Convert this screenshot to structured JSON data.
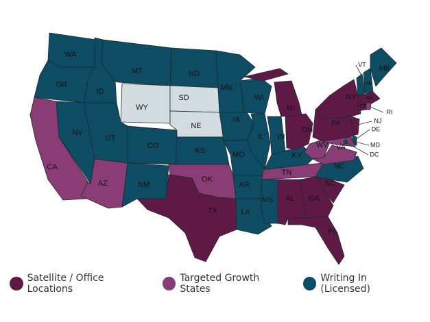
{
  "colors": {
    "satellite": "#5e1a45",
    "growth": "#8a3c75",
    "licensed": "#0d4c62",
    "none": "#d3dcdf"
  },
  "legend": [
    {
      "key": "satellite",
      "label": "Satellite / Office Locations"
    },
    {
      "key": "growth",
      "label": "Targeted Growth States"
    },
    {
      "key": "licensed",
      "label": "Writing In (Licensed)"
    }
  ],
  "states": [
    {
      "abbr": "WA",
      "status": "licensed"
    },
    {
      "abbr": "OR",
      "status": "licensed"
    },
    {
      "abbr": "CA",
      "status": "growth"
    },
    {
      "abbr": "ID",
      "status": "licensed"
    },
    {
      "abbr": "NV",
      "status": "licensed"
    },
    {
      "abbr": "MT",
      "status": "licensed"
    },
    {
      "abbr": "WY",
      "status": "none"
    },
    {
      "abbr": "UT",
      "status": "licensed"
    },
    {
      "abbr": "AZ",
      "status": "growth"
    },
    {
      "abbr": "CO",
      "status": "licensed"
    },
    {
      "abbr": "NM",
      "status": "licensed"
    },
    {
      "abbr": "ND",
      "status": "licensed"
    },
    {
      "abbr": "SD",
      "status": "none"
    },
    {
      "abbr": "NE",
      "status": "none"
    },
    {
      "abbr": "KS",
      "status": "licensed"
    },
    {
      "abbr": "OK",
      "status": "growth"
    },
    {
      "abbr": "TX",
      "status": "satellite"
    },
    {
      "abbr": "MN",
      "status": "licensed"
    },
    {
      "abbr": "IA",
      "status": "licensed"
    },
    {
      "abbr": "MO",
      "status": "licensed"
    },
    {
      "abbr": "AR",
      "status": "licensed"
    },
    {
      "abbr": "LA",
      "status": "licensed"
    },
    {
      "abbr": "WI",
      "status": "licensed"
    },
    {
      "abbr": "IL",
      "status": "licensed"
    },
    {
      "abbr": "MS",
      "status": "licensed"
    },
    {
      "abbr": "MI",
      "status": "satellite"
    },
    {
      "abbr": "IN",
      "status": "licensed"
    },
    {
      "abbr": "KY",
      "status": "licensed"
    },
    {
      "abbr": "TN",
      "status": "growth"
    },
    {
      "abbr": "AL",
      "status": "satellite"
    },
    {
      "abbr": "OH",
      "status": "satellite"
    },
    {
      "abbr": "GA",
      "status": "satellite"
    },
    {
      "abbr": "FL",
      "status": "satellite"
    },
    {
      "abbr": "SC",
      "status": "satellite"
    },
    {
      "abbr": "NC",
      "status": "licensed"
    },
    {
      "abbr": "WV",
      "status": "growth"
    },
    {
      "abbr": "VA",
      "status": "growth"
    },
    {
      "abbr": "PA",
      "status": "satellite"
    },
    {
      "abbr": "NY",
      "status": "satellite"
    },
    {
      "abbr": "NJ",
      "status": "satellite"
    },
    {
      "abbr": "DE",
      "status": "licensed"
    },
    {
      "abbr": "MD",
      "status": "growth"
    },
    {
      "abbr": "DC",
      "status": "licensed"
    },
    {
      "abbr": "VT",
      "status": "licensed"
    },
    {
      "abbr": "NH",
      "status": "licensed"
    },
    {
      "abbr": "ME",
      "status": "licensed"
    },
    {
      "abbr": "MA",
      "status": "satellite"
    },
    {
      "abbr": "CT",
      "status": "satellite"
    },
    {
      "abbr": "RI",
      "status": "growth"
    }
  ]
}
